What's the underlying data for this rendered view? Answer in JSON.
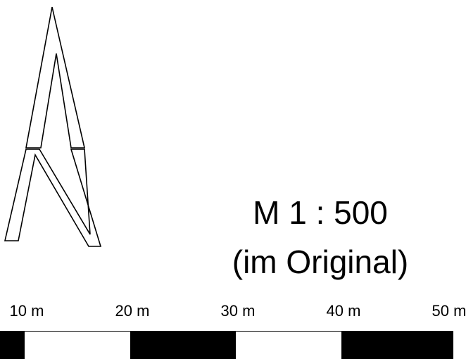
{
  "map": {
    "north_arrow_icon": "north-arrow-icon",
    "scale": {
      "ratio": "M 1 : 500",
      "note": "(im Original)"
    },
    "scale_bar": {
      "tick_labels": [
        "10 m",
        "20 m",
        "30 m",
        "40 m",
        "50 m"
      ],
      "segments": [
        "black",
        "white",
        "black",
        "white",
        "black"
      ]
    }
  }
}
